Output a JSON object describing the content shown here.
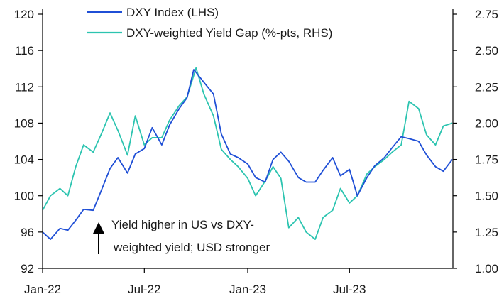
{
  "chart_data": {
    "type": "line",
    "title": "",
    "xlabel": "",
    "ylabel": "",
    "x_ticks": [
      "Jan-22",
      "Jul-22",
      "Jan-23",
      "Jul-23"
    ],
    "x_range": [
      "2022-01",
      "2024-01"
    ],
    "y_left": {
      "range": [
        92,
        120
      ],
      "ticks": [
        92,
        96,
        100,
        104,
        108,
        112,
        116,
        120
      ]
    },
    "y_right": {
      "range": [
        1.0,
        2.75
      ],
      "ticks": [
        "1.00",
        "1.25",
        "1.50",
        "1.75",
        "2.00",
        "2.25",
        "2.50",
        "2.75"
      ]
    },
    "legend": {
      "placement": "top-left",
      "entries": [
        "DXY Index (LHS)",
        "DXY-weighted Yield Gap (%-pts, RHS)"
      ]
    },
    "annotation": {
      "line1": "Yield higher in US vs DXY-",
      "line2": "weighted yield; USD stronger"
    },
    "series": [
      {
        "name": "DXY Index (LHS)",
        "axis": "left",
        "color": "#1f4fd6",
        "points": [
          [
            "2022-01-01",
            96.0
          ],
          [
            "2022-01-15",
            95.2
          ],
          [
            "2022-02-01",
            96.4
          ],
          [
            "2022-02-15",
            96.2
          ],
          [
            "2022-03-01",
            97.3
          ],
          [
            "2022-03-15",
            98.5
          ],
          [
            "2022-04-01",
            98.4
          ],
          [
            "2022-04-15",
            100.5
          ],
          [
            "2022-05-01",
            103.0
          ],
          [
            "2022-05-15",
            104.2
          ],
          [
            "2022-06-01",
            102.5
          ],
          [
            "2022-06-15",
            104.6
          ],
          [
            "2022-07-01",
            105.2
          ],
          [
            "2022-07-15",
            107.5
          ],
          [
            "2022-08-01",
            105.6
          ],
          [
            "2022-08-15",
            107.8
          ],
          [
            "2022-09-01",
            109.6
          ],
          [
            "2022-09-15",
            110.8
          ],
          [
            "2022-09-27",
            113.9
          ],
          [
            "2022-10-15",
            112.5
          ],
          [
            "2022-11-01",
            111.2
          ],
          [
            "2022-11-15",
            106.8
          ],
          [
            "2022-12-01",
            104.6
          ],
          [
            "2022-12-15",
            104.2
          ],
          [
            "2023-01-01",
            103.5
          ],
          [
            "2023-01-15",
            102.0
          ],
          [
            "2023-02-01",
            101.5
          ],
          [
            "2023-02-15",
            104.0
          ],
          [
            "2023-03-01",
            104.8
          ],
          [
            "2023-03-15",
            103.8
          ],
          [
            "2023-04-01",
            102.0
          ],
          [
            "2023-04-15",
            101.5
          ],
          [
            "2023-05-01",
            101.5
          ],
          [
            "2023-05-15",
            102.8
          ],
          [
            "2023-06-01",
            104.2
          ],
          [
            "2023-06-15",
            102.2
          ],
          [
            "2023-07-01",
            102.9
          ],
          [
            "2023-07-15",
            100.0
          ],
          [
            "2023-08-01",
            102.0
          ],
          [
            "2023-08-15",
            103.3
          ],
          [
            "2023-09-01",
            104.2
          ],
          [
            "2023-09-15",
            105.3
          ],
          [
            "2023-10-01",
            106.5
          ],
          [
            "2023-10-15",
            106.3
          ],
          [
            "2023-11-01",
            106.0
          ],
          [
            "2023-11-15",
            104.5
          ],
          [
            "2023-12-01",
            103.2
          ],
          [
            "2023-12-15",
            102.7
          ],
          [
            "2023-12-31",
            104.0
          ]
        ]
      },
      {
        "name": "DXY-weighted Yield Gap (%-pts, RHS)",
        "axis": "right",
        "color": "#2cc4b0",
        "points": [
          [
            "2022-01-01",
            1.4
          ],
          [
            "2022-01-15",
            1.5
          ],
          [
            "2022-02-01",
            1.55
          ],
          [
            "2022-02-15",
            1.5
          ],
          [
            "2022-03-01",
            1.7
          ],
          [
            "2022-03-15",
            1.85
          ],
          [
            "2022-04-01",
            1.8
          ],
          [
            "2022-04-15",
            1.92
          ],
          [
            "2022-05-01",
            2.07
          ],
          [
            "2022-05-15",
            1.95
          ],
          [
            "2022-06-01",
            1.78
          ],
          [
            "2022-06-15",
            2.05
          ],
          [
            "2022-07-01",
            1.85
          ],
          [
            "2022-07-15",
            1.9
          ],
          [
            "2022-08-01",
            1.9
          ],
          [
            "2022-08-15",
            2.02
          ],
          [
            "2022-09-01",
            2.12
          ],
          [
            "2022-09-15",
            2.18
          ],
          [
            "2022-10-01",
            2.38
          ],
          [
            "2022-10-15",
            2.2
          ],
          [
            "2022-11-01",
            2.05
          ],
          [
            "2022-11-15",
            1.82
          ],
          [
            "2022-12-01",
            1.75
          ],
          [
            "2022-12-15",
            1.7
          ],
          [
            "2023-01-01",
            1.62
          ],
          [
            "2023-01-15",
            1.5
          ],
          [
            "2023-02-01",
            1.6
          ],
          [
            "2023-02-15",
            1.7
          ],
          [
            "2023-03-01",
            1.62
          ],
          [
            "2023-03-15",
            1.28
          ],
          [
            "2023-04-01",
            1.35
          ],
          [
            "2023-04-15",
            1.25
          ],
          [
            "2023-05-01",
            1.2
          ],
          [
            "2023-05-15",
            1.35
          ],
          [
            "2023-06-01",
            1.4
          ],
          [
            "2023-06-15",
            1.55
          ],
          [
            "2023-07-01",
            1.45
          ],
          [
            "2023-07-15",
            1.5
          ],
          [
            "2023-08-01",
            1.65
          ],
          [
            "2023-08-15",
            1.7
          ],
          [
            "2023-09-01",
            1.75
          ],
          [
            "2023-09-15",
            1.8
          ],
          [
            "2023-10-01",
            1.85
          ],
          [
            "2023-10-15",
            2.15
          ],
          [
            "2023-11-01",
            2.1
          ],
          [
            "2023-11-15",
            1.92
          ],
          [
            "2023-12-01",
            1.85
          ],
          [
            "2023-12-15",
            1.98
          ],
          [
            "2023-12-31",
            2.0
          ]
        ]
      }
    ]
  }
}
